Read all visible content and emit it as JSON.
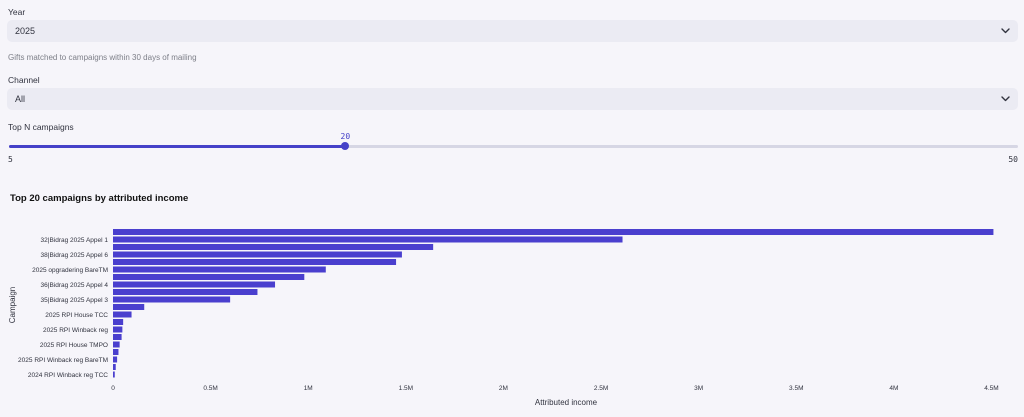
{
  "year": {
    "label": "Year",
    "value": "2025"
  },
  "caption": "Gifts matched to campaigns within 30 days of mailing",
  "channel": {
    "label": "Channel",
    "value": "All"
  },
  "top_n": {
    "label": "Top N campaigns",
    "value": 20,
    "value_text": "20",
    "min": 5,
    "min_text": "5",
    "max": 50,
    "max_text": "50"
  },
  "colors": {
    "accent": "#4541c8",
    "bar": "#4a3fce"
  },
  "chart_data": {
    "type": "bar",
    "orientation": "horizontal",
    "title": "Top 20 campaigns by attributed income",
    "xlabel": "Attributed income",
    "ylabel": "Campaign",
    "xlim": [
      0,
      4600000
    ],
    "xticks": [
      {
        "v": 0,
        "t": "0"
      },
      {
        "v": 500000,
        "t": "0.5M"
      },
      {
        "v": 1000000,
        "t": "1M"
      },
      {
        "v": 1500000,
        "t": "1.5M"
      },
      {
        "v": 2000000,
        "t": "2M"
      },
      {
        "v": 2500000,
        "t": "2.5M"
      },
      {
        "v": 3000000,
        "t": "3M"
      },
      {
        "v": 3500000,
        "t": "3.5M"
      },
      {
        "v": 4000000,
        "t": "4M"
      },
      {
        "v": 4500000,
        "t": "4.5M"
      }
    ],
    "category_labels": [
      "",
      "32|Bidrag 2025 Appel 1",
      "",
      "38|Bidrag 2025 Appel 6",
      "",
      "2025 opgradering BareTM",
      "",
      "36|Bidrag 2025 Appel 4",
      "",
      "35|Bidrag 2025 Appel 3",
      "",
      "2025 RPI House TCC",
      "",
      "2025 RPI Winback reg",
      "",
      "2025 RPI House TMPO",
      "",
      "2025 RPI Winback reg BareTM",
      "",
      "2024 RPI Winback reg TCC"
    ],
    "values": [
      4510000,
      2610000,
      1640000,
      1480000,
      1450000,
      1090000,
      980000,
      830000,
      740000,
      600000,
      160000,
      95000,
      52000,
      48000,
      44000,
      34000,
      28000,
      21000,
      14000,
      9000
    ]
  }
}
